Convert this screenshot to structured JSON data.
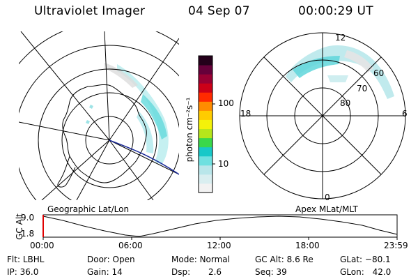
{
  "header": {
    "instrument": "Ultraviolet Imager",
    "date": "04 Sep 07",
    "time": "00:00:29 UT"
  },
  "geo_panel": {
    "label": "Geographic Lat/Lon"
  },
  "colorbar": {
    "unit_label": "photon cm⁻²s⁻¹",
    "ticks": [
      "100",
      "10"
    ],
    "scale": "log",
    "colors": [
      "#f2f2f2",
      "#d9eef0",
      "#b9e6ea",
      "#6fe0e0",
      "#18c8c8",
      "#3ad84a",
      "#b6e61b",
      "#f4f20a",
      "#ffcc00",
      "#ff8c00",
      "#ff2a00",
      "#cc0018",
      "#990033",
      "#66003a",
      "#24001a"
    ]
  },
  "polar_panel": {
    "label": "Apex MLat/MLT",
    "mlt_labels": [
      "12",
      "18",
      "6",
      "0"
    ],
    "mlat_labels": [
      "60",
      "70",
      "80"
    ]
  },
  "timeline": {
    "ylabel": "GC Alt",
    "yticks": [
      "9.0",
      "1.8"
    ],
    "xticks": [
      "00:00",
      "06:00",
      "12:00",
      "18:00",
      "23:59"
    ],
    "current_marker_color": "#e00000"
  },
  "info": {
    "flt_label": "Flt:",
    "flt_value": "LBHL",
    "ip_label": "IP:",
    "ip_value": "36.0",
    "door_label": "Door:",
    "door_value": "Open",
    "gain_label": "Gain:",
    "gain_value": "14",
    "mode_label": "Mode:",
    "mode_value": "Normal",
    "dsp_label": "Dsp:",
    "dsp_value": "2.6",
    "gcalt_label": "GC Alt:",
    "gcalt_value": "8.6 Re",
    "seq_label": "Seq:",
    "seq_value": "39",
    "glat_label": "GLat:",
    "glat_value": "−80.1",
    "glon_label": "GLon:",
    "glon_value": "42.0"
  }
}
